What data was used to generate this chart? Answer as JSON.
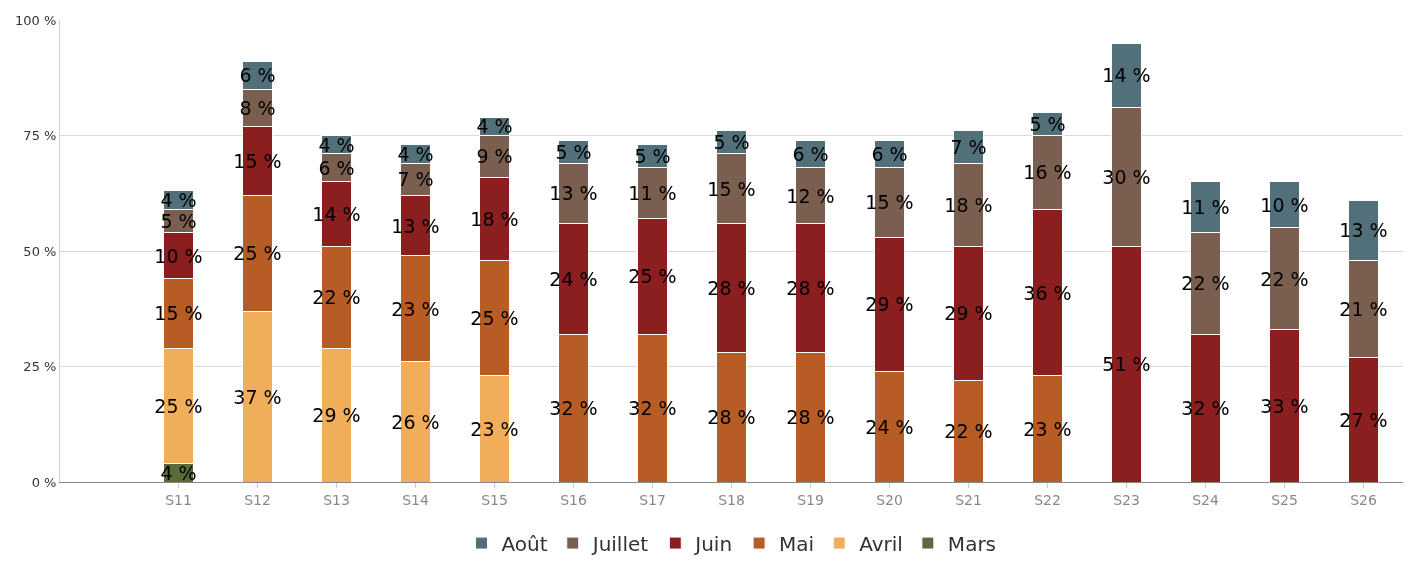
{
  "chart_data": {
    "type": "bar",
    "stacked": true,
    "categories": [
      null,
      "S11",
      "S12",
      "S13",
      "S14",
      "S15",
      "S16",
      "S17",
      "S18",
      "S19",
      "S20",
      "S21",
      "S22",
      "S23",
      "S24",
      "S25",
      "S26"
    ],
    "series": [
      {
        "name": "Mars",
        "color": "#5a6b3a",
        "values": [
          null,
          4,
          null,
          null,
          null,
          null,
          null,
          null,
          null,
          null,
          null,
          null,
          null,
          null,
          null,
          null,
          null
        ],
        "value_labels": [
          null,
          "4 %",
          null,
          null,
          null,
          null,
          null,
          null,
          null,
          null,
          null,
          null,
          null,
          null,
          null,
          null,
          null
        ]
      },
      {
        "name": "Avril",
        "color": "#f0ad5a",
        "values": [
          null,
          25,
          37,
          29,
          26,
          23,
          null,
          null,
          null,
          null,
          null,
          null,
          null,
          null,
          null,
          null,
          null
        ],
        "value_labels": [
          null,
          "25 %",
          "37 %",
          "29 %",
          "26 %",
          "23 %",
          null,
          null,
          null,
          null,
          null,
          null,
          null,
          null,
          null,
          null,
          null
        ]
      },
      {
        "name": "Mai",
        "color": "#b85c25",
        "values": [
          null,
          15,
          25,
          22,
          23,
          25,
          32,
          32,
          28,
          28,
          24,
          22,
          23,
          null,
          null,
          null,
          null
        ],
        "value_labels": [
          null,
          "15 %",
          "25 %",
          "22 %",
          "23 %",
          "25 %",
          "32 %",
          "32 %",
          "28 %",
          "28 %",
          "24 %",
          "22 %",
          "23 %",
          null,
          null,
          null,
          null
        ]
      },
      {
        "name": "Juin",
        "color": "#8b1f1f",
        "values": [
          null,
          10,
          15,
          14,
          13,
          18,
          24,
          25,
          28,
          28,
          29,
          29,
          36,
          51,
          32,
          33,
          27
        ],
        "value_labels": [
          null,
          "10 %",
          "15 %",
          "14 %",
          "13 %",
          "18 %",
          "24 %",
          "25 %",
          "28 %",
          "28 %",
          "29 %",
          "29 %",
          "36 %",
          "51 %",
          "32 %",
          "33 %",
          "27 %"
        ]
      },
      {
        "name": "Juillet",
        "color": "#7a5e50",
        "values": [
          null,
          5,
          8,
          6,
          7,
          9,
          13,
          11,
          15,
          12,
          15,
          18,
          16,
          30,
          22,
          22,
          21
        ],
        "value_labels": [
          null,
          "5 %",
          "8 %",
          "6 %",
          "7 %",
          "9 %",
          "13 %",
          "11 %",
          "15 %",
          "12 %",
          "15 %",
          "18 %",
          "16 %",
          "30 %",
          "22 %",
          "22 %",
          "21 %"
        ]
      },
      {
        "name": "Août",
        "color": "#52707a",
        "values": [
          null,
          4,
          6,
          4,
          4,
          4,
          5,
          5,
          5,
          6,
          6,
          7,
          5,
          14,
          11,
          10,
          13
        ],
        "value_labels": [
          null,
          "4 %",
          "6 %",
          "4 %",
          "4 %",
          "4 %",
          "5 %",
          "5 %",
          "5 %",
          "6 %",
          "6 %",
          "7 %",
          "5 %",
          "14 %",
          "11 %",
          "10 %",
          "13 %"
        ]
      }
    ],
    "ylim": [
      0,
      100
    ],
    "yticks": [
      {
        "value": 0,
        "label": "0 %"
      },
      {
        "value": 25,
        "label": "25 %"
      },
      {
        "value": 50,
        "label": "50 %"
      },
      {
        "value": 75,
        "label": "75 %"
      },
      {
        "value": 100,
        "label": "100 %"
      }
    ],
    "grid": "y",
    "legend": "bottom"
  }
}
